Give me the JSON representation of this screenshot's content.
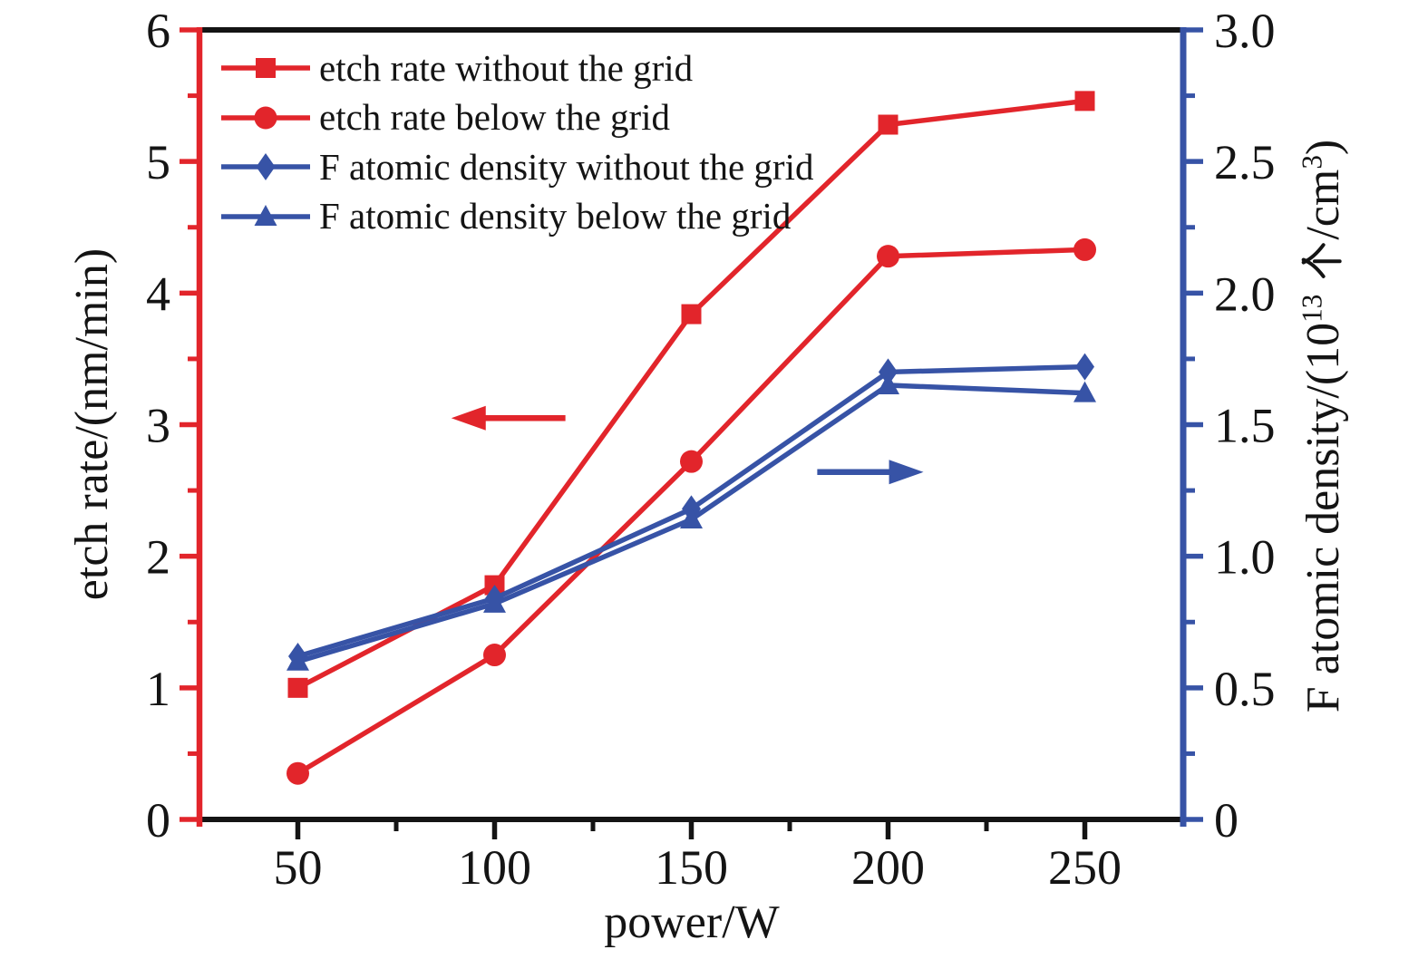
{
  "figure": {
    "background": "#ffffff",
    "text_color": "#141414"
  },
  "chart_data": {
    "type": "line",
    "title": "",
    "xlabel": "power/W",
    "ylabel_left": "etch rate/(nm/min)",
    "ylabel_right": "F atomic density/(10¹³ 个/cm³)",
    "ylabel_right_parts": {
      "pre": "F atomic density/(10",
      "sup1": "13",
      "cjk": "个",
      "mid": "/cm",
      "sup2": "3",
      "post": ")"
    },
    "x": [
      50,
      100,
      150,
      200,
      250
    ],
    "xlim": [
      25,
      275
    ],
    "ylim_left": [
      0,
      6
    ],
    "ylim_right": [
      0,
      3.0
    ],
    "grid": false,
    "legend_position": "top-left",
    "axis_colors": {
      "left": "#e2252b",
      "right": "#3753a6",
      "bottom": "#141414",
      "top": "#141414"
    },
    "xticks": {
      "values": [
        50,
        100,
        150,
        200,
        250
      ],
      "labels": [
        "50",
        "100",
        "150",
        "200",
        "250"
      ],
      "minor": [
        75,
        125,
        175,
        225
      ]
    },
    "yticks_left": {
      "values": [
        0,
        1,
        2,
        3,
        4,
        5,
        6
      ],
      "labels": [
        "0",
        "1",
        "2",
        "3",
        "4",
        "5",
        "6"
      ],
      "minor": [
        0.5,
        1.5,
        2.5,
        3.5,
        4.5,
        5.5
      ]
    },
    "yticks_right": {
      "values": [
        0,
        0.5,
        1.0,
        1.5,
        2.0,
        2.5,
        3.0
      ],
      "labels": [
        "0",
        "0.5",
        "1.0",
        "1.5",
        "2.0",
        "2.5",
        "3.0"
      ],
      "minor": [
        0.25,
        0.75,
        1.25,
        1.75,
        2.25,
        2.75
      ]
    },
    "series": [
      {
        "name": "etch rate without the grid",
        "axis": "left",
        "color": "#e2252b",
        "marker": "square",
        "values": [
          1.0,
          1.78,
          3.84,
          5.28,
          5.46
        ]
      },
      {
        "name": "etch rate below the grid",
        "axis": "left",
        "color": "#e2252b",
        "marker": "circle",
        "values": [
          0.35,
          1.25,
          2.72,
          4.28,
          4.33
        ]
      },
      {
        "name": "F atomic density without the grid",
        "axis": "right",
        "color": "#3753a6",
        "marker": "diamond",
        "values": [
          0.62,
          0.84,
          1.18,
          1.7,
          1.72
        ]
      },
      {
        "name": "F atomic density below the grid",
        "axis": "right",
        "color": "#3753a6",
        "marker": "triangle",
        "values": [
          0.6,
          0.82,
          1.14,
          1.65,
          1.62
        ]
      }
    ],
    "annotations": [
      {
        "type": "arrow",
        "color": "#e2252b",
        "axis": "left",
        "x_tail": 118,
        "x_tip": 89,
        "y": 3.05
      },
      {
        "type": "arrow",
        "color": "#3753a6",
        "axis": "right",
        "x_tail": 182,
        "x_tip": 209,
        "y": 1.32
      }
    ]
  }
}
